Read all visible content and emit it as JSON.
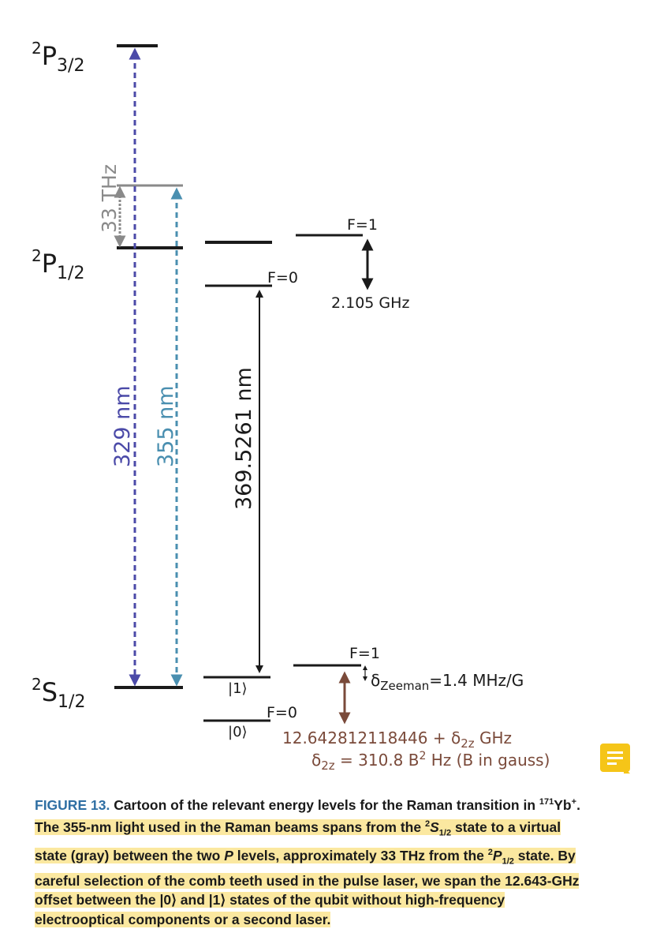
{
  "levels": {
    "p32": {
      "sup": "2",
      "main": "P",
      "sub": "3/2"
    },
    "p12": {
      "sup": "2",
      "main": "P",
      "sub": "1/2"
    },
    "s12": {
      "sup": "2",
      "main": "S",
      "sub": "1/2"
    }
  },
  "labels": {
    "thz": "33 THz",
    "nm329": "329 nm",
    "nm355": "355 nm",
    "nm369": "369.5261 nm",
    "p_f1": "F=1",
    "p_f0": "F=0",
    "p_split": "2.105 GHz",
    "s_f1": "F=1",
    "s_f0": "F=0",
    "ket1": "|1⟩",
    "ket0": "|0⟩",
    "zeeman_delta": "δ",
    "zeeman_sub": "Zeeman",
    "zeeman_val": "=1.4 MHz/G",
    "hf_main": "12.642812118446 + δ",
    "hf_sub": "2z",
    "hf_unit": " GHz",
    "d2z": "δ",
    "d2z_sub": "2z",
    "d2z_mid": " = 310.8 B",
    "d2z_sup": "2",
    "d2z_end": " Hz (B in gauss)"
  },
  "colors": {
    "violet": "#4b4aa8",
    "teal": "#4a8fb0",
    "gray": "#8a8a8a",
    "brown": "#7a4a3a",
    "black": "#1a1a1a"
  },
  "caption": {
    "figure_label": "FIGURE 13.",
    "t1": "Cartoon of the relevant energy levels for the Raman transition in ",
    "iso": "171",
    "yb": "Yb",
    "ion": "+",
    "t2": ". ",
    "h1": "The 355-nm light used in the Raman beams spans from the ",
    "h_s_sup": "2",
    "h_s": "S",
    "h_s_sub": "1/2",
    "h2": " state to a virtual state (gray) between the two ",
    "h_P": "P",
    "h3": " levels, approximately 33 THz from the ",
    "h_p_sup": "2",
    "h_p": "P",
    "h_p_sub": "1/2",
    "h4": " state. By careful selection of the comb teeth used in the pulse laser, we span the 12.643-GHz offset between the |0⟩ and |1⟩ states of the qubit without high-frequency electrooptical components or a second laser."
  },
  "note_icon": "comment-note-icon"
}
